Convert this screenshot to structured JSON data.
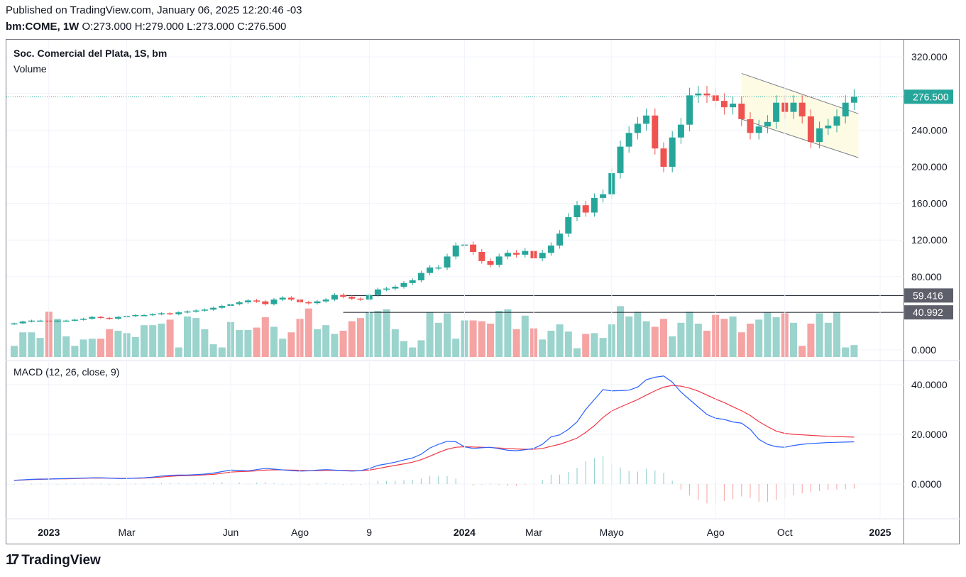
{
  "header": {
    "published": "Published on TradingView.com, January 06, 2025 12:20:46 -03",
    "symbol": "bm:COME, 1W",
    "o_label": "O:",
    "o_value": "273.000",
    "h_label": "H:",
    "h_value": "279.000",
    "l_label": "L:",
    "l_value": "273.000",
    "c_label": "C:",
    "c_value": "276.500"
  },
  "legend": {
    "series": "Soc. Comercial del Plata, 1S, bm",
    "volume": "Volume",
    "macd": "MACD (12, 26, close, 9)"
  },
  "footer": {
    "brand": "TradingView"
  },
  "colors": {
    "up": "#26a69a",
    "down": "#ef5350",
    "volume_up": "#9bd3cd",
    "volume_down": "#f5a3a3",
    "macd_line": "#2962ff",
    "signal_line": "#f23645",
    "channel_fill": "#fdfbe3",
    "last_price_tag": "#26a69a",
    "hline_tag": "#5d606b"
  },
  "chart_data": {
    "type": "candlestick",
    "timeframe": "1W",
    "price_axis": {
      "ticks": [
        "320.000",
        "280.000",
        "240.000",
        "200.000",
        "160.000",
        "120.000",
        "80.000",
        "0.000"
      ],
      "range": [
        0,
        330
      ]
    },
    "time_axis": {
      "labels": [
        "2023",
        "Mar",
        "Jun",
        "Ago",
        "9",
        "2024",
        "Mar",
        "Mayo",
        "Ago",
        "Oct",
        "2025"
      ]
    },
    "last_price": {
      "value": 276.5,
      "label": "276.500"
    },
    "horizontal_lines": [
      {
        "value": 59.416,
        "label": "59.416"
      },
      {
        "value": 40.992,
        "label": "40.992"
      }
    ],
    "channel": {
      "upper": [
        [
          "2024-08-26",
          302
        ],
        [
          "2025-01-06",
          258
        ]
      ],
      "lower": [
        [
          "2024-08-26",
          252
        ],
        [
          "2025-01-06",
          210
        ]
      ]
    },
    "close": [
      29,
      31,
      32,
      32,
      31,
      32,
      32,
      33,
      34,
      36,
      35,
      34,
      36,
      37,
      38,
      38,
      39,
      40,
      39,
      41,
      42,
      43,
      44,
      46,
      48,
      50,
      52,
      54,
      53,
      50,
      55,
      57,
      55,
      52,
      51,
      53,
      55,
      60,
      58,
      56,
      55,
      60,
      66,
      67,
      69,
      73,
      76,
      84,
      90,
      90,
      102,
      114,
      115,
      107,
      97,
      93,
      102,
      106,
      104,
      108,
      100,
      106,
      114,
      127,
      145,
      158,
      150,
      166,
      170,
      193,
      222,
      237,
      247,
      256,
      220,
      200,
      232,
      246,
      278,
      280,
      278,
      272,
      265,
      269,
      252,
      237,
      244,
      249,
      270,
      260,
      270,
      255,
      227,
      242,
      245,
      255,
      270,
      276.5
    ],
    "volume": [
      14,
      31,
      31,
      24,
      57,
      48,
      26,
      14,
      22,
      23,
      23,
      35,
      33,
      30,
      25,
      40,
      40,
      42,
      47,
      12,
      51,
      49,
      35,
      16,
      12,
      44,
      34,
      34,
      37,
      50,
      38,
      23,
      31,
      48,
      61,
      35,
      40,
      29,
      33,
      45,
      49,
      56,
      58,
      60,
      35,
      20,
      12,
      21,
      56,
      43,
      55,
      23,
      46,
      46,
      45,
      42,
      58,
      60,
      35,
      52,
      36,
      22,
      33,
      41,
      32,
      11,
      29,
      30,
      24,
      41,
      64,
      51,
      57,
      45,
      38,
      48,
      26,
      43,
      57,
      42,
      33,
      53,
      48,
      51,
      31,
      42,
      47,
      56,
      50,
      55,
      43,
      14,
      42,
      55,
      43,
      56,
      12,
      15
    ],
    "macd": {
      "range": [
        -10,
        45
      ],
      "ticks": [
        "40.0000",
        "20.0000",
        "0.0000"
      ]
    },
    "macd_series": [
      1.5,
      1.7,
      1.9,
      2.0,
      2.0,
      2.1,
      2.2,
      2.3,
      2.4,
      2.5,
      2.5,
      2.4,
      2.2,
      2.2,
      2.4,
      2.5,
      2.8,
      3.2,
      3.5,
      3.6,
      3.6,
      3.8,
      4.0,
      4.4,
      5.0,
      5.6,
      5.5,
      5.3,
      5.8,
      6.3,
      6.0,
      5.7,
      5.4,
      5.2,
      5.3,
      5.6,
      5.8,
      5.6,
      5.4,
      5.2,
      5.4,
      6.2,
      7.5,
      8.1,
      8.8,
      9.7,
      10.5,
      12.0,
      14.5,
      16.0,
      17.2,
      17.0,
      15.0,
      14.3,
      14.6,
      14.8,
      14.2,
      13.6,
      13.4,
      13.8,
      14.3,
      16.0,
      19.0,
      19.8,
      22.0,
      25.0,
      30.0,
      34.0,
      38.0,
      37.5,
      37.6,
      37.8,
      39.0,
      42.0,
      43.0,
      43.5,
      41.0,
      37.0,
      34.0,
      31.0,
      28.0,
      26.5,
      26.0,
      25.0,
      24.5,
      22.0,
      18.0,
      16.0,
      15.0,
      14.8,
      15.5,
      16.0,
      16.3,
      16.5,
      16.7,
      16.8,
      16.9,
      17.0
    ],
    "signal_series": [
      1.5,
      1.6,
      1.8,
      1.9,
      2.0,
      2.1,
      2.1,
      2.2,
      2.3,
      2.4,
      2.4,
      2.4,
      2.3,
      2.3,
      2.3,
      2.4,
      2.6,
      2.8,
      3.1,
      3.3,
      3.4,
      3.5,
      3.7,
      3.9,
      4.3,
      4.8,
      5.0,
      5.1,
      5.3,
      5.6,
      5.7,
      5.7,
      5.6,
      5.5,
      5.4,
      5.4,
      5.5,
      5.5,
      5.5,
      5.4,
      5.4,
      5.6,
      6.2,
      6.9,
      7.5,
      8.1,
      8.8,
      9.8,
      11.2,
      12.7,
      14.0,
      14.8,
      15.0,
      14.9,
      14.8,
      14.7,
      14.5,
      14.3,
      14.1,
      14.0,
      14.0,
      14.3,
      15.2,
      16.0,
      17.2,
      18.5,
      20.8,
      23.5,
      26.8,
      29.4,
      31.0,
      32.5,
      34.0,
      35.8,
      37.5,
      39.0,
      39.7,
      39.4,
      38.6,
      37.4,
      35.8,
      34.2,
      32.8,
      31.1,
      29.5,
      27.6,
      25.1,
      23.1,
      21.3,
      20.4,
      20.0,
      19.8,
      19.6,
      19.4,
      19.2,
      19.1,
      19.0,
      18.9
    ]
  }
}
